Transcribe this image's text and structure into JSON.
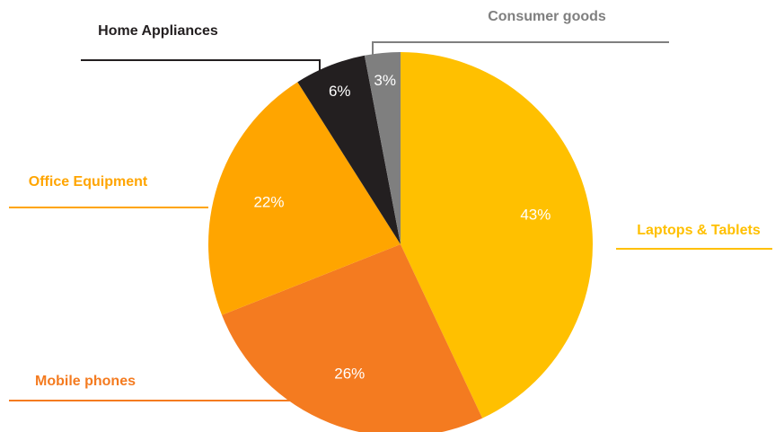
{
  "chart_data": {
    "type": "pie",
    "unit": "%",
    "series": [
      {
        "name": "Laptops & Tablets",
        "value": 43,
        "label": "43%",
        "color": "#FFC000"
      },
      {
        "name": "Mobile phones",
        "value": 26,
        "label": "26%",
        "color": "#F47B20"
      },
      {
        "name": "Office Equipment",
        "value": 22,
        "label": "22%",
        "color": "#FFA500"
      },
      {
        "name": "Home Appliances",
        "value": 6,
        "label": "6%",
        "color": "#231F20"
      },
      {
        "name": "Consumer goods",
        "value": 3,
        "label": "3%",
        "color": "#7F7F7F"
      }
    ],
    "category_label_colors": {
      "Laptops & Tablets": "#FFC000",
      "Mobile phones": "#F47B20",
      "Office Equipment": "#FFA500",
      "Home Appliances": "#231F20",
      "Consumer goods": "#7F7F7F"
    },
    "start": "12 o'clock",
    "direction": "clockwise"
  }
}
